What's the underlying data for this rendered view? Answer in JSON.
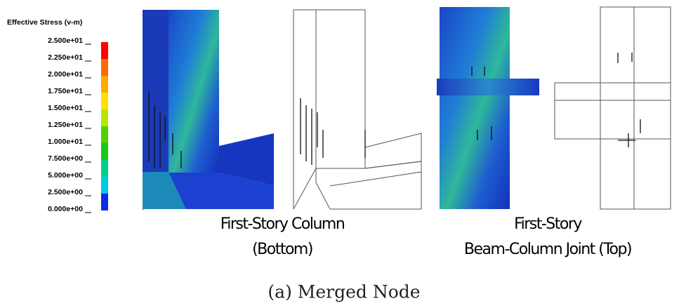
{
  "legend": {
    "title": "Effective Stress (v-m)",
    "labels": [
      "2.500e+01",
      "2.250e+01",
      "2.000e+01",
      "1.750e+01",
      "1.500e+01",
      "1.250e+01",
      "1.000e+01",
      "7.500e+00",
      "5.000e+00",
      "2.500e+00",
      "0.000e+00"
    ],
    "colors": [
      "#ff0000",
      "#ff6a00",
      "#ffaa00",
      "#ffe000",
      "#b4e600",
      "#50d200",
      "#14c81e",
      "#00d28c",
      "#00c8e6",
      "#0a2ae6"
    ]
  },
  "panels": [
    {
      "caption": [
        "First-Story Column",
        "(Bottom)"
      ]
    },
    {
      "caption": [
        "First-Story",
        "Beam-Column Joint (Top)"
      ]
    }
  ],
  "figure_caption": "(a) Merged Node"
}
